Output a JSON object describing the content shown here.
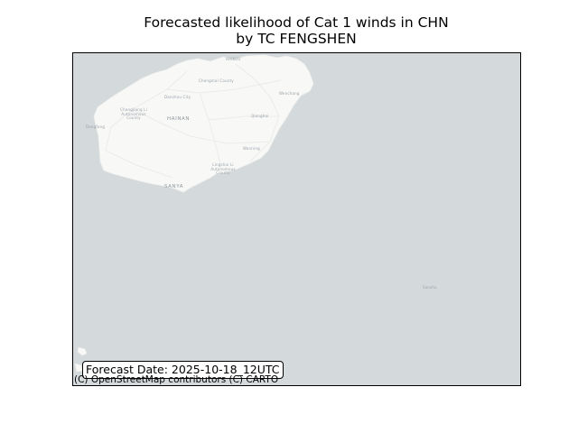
{
  "title": {
    "line1": "Forecasted likelihood of Cat 1 winds in CHN",
    "line2": "by TC FENGSHEN"
  },
  "forecast": {
    "label": "Forecast Date: 2025-10-18_12UTC"
  },
  "map": {
    "attribution": "(C) OpenStreetMap contributors (C) CARTO",
    "region": "HAINAN",
    "places": {
      "haikou": "HAIKOU",
      "chengmai": "Chengmai County",
      "wenchang": "Wenchang",
      "danzhou": "Danzhou City",
      "changjiang": "Changjiang Li Autonomous County",
      "dongfang": "Dongfang",
      "qionghai": "Qionghai",
      "wanning": "Wanning",
      "lingshui": "Lingshui Li Autonomous County",
      "sanya": "SANYA",
      "sansha": "Sansha"
    },
    "colors": {
      "sea": "#d4dadc",
      "land": "#f8f8f7",
      "road": "#ebebea"
    }
  }
}
